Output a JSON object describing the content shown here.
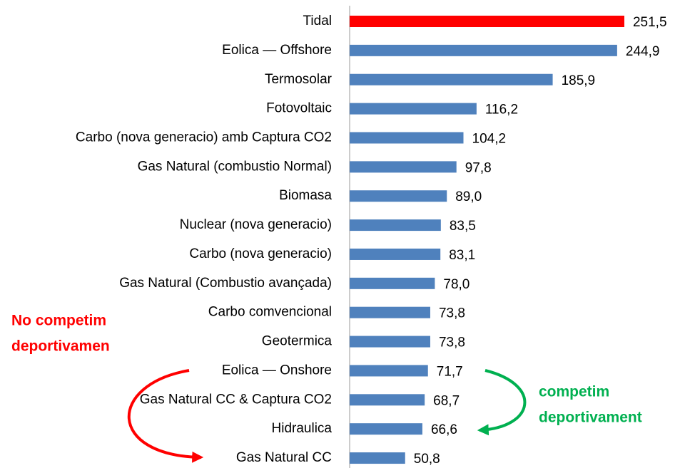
{
  "chart_data": {
    "type": "bar",
    "orientation": "horizontal",
    "categories": [
      "Tidal",
      "Eolica — Offshore",
      "Termosolar",
      "Fotovoltaic",
      "Carbo (nova generacio) amb Captura CO2",
      "Gas Natural (combustio Normal)",
      "Biomasa",
      "Nuclear (nova generacio)",
      "Carbo (nova generacio)",
      "Gas Natural (Combustio avançada)",
      "Carbo comvencional",
      "Geotermica",
      "Eolica — Onshore",
      "Gas Natural CC & Captura CO2",
      "Hidraulica",
      "Gas Natural CC"
    ],
    "values": [
      251.5,
      244.9,
      185.9,
      116.2,
      104.2,
      97.8,
      89.0,
      83.5,
      83.1,
      78.0,
      73.8,
      73.8,
      71.7,
      68.7,
      66.6,
      50.8
    ],
    "value_labels": [
      "251,5",
      "244,9",
      "185,9",
      "116,2",
      "104,2",
      "97,8",
      "89,0",
      "83,5",
      "83,1",
      "78,0",
      "73,8",
      "73,8",
      "71,7",
      "68,7",
      "66,6",
      "50,8"
    ],
    "colors": [
      "#ff0000",
      "#4f81bd",
      "#4f81bd",
      "#4f81bd",
      "#4f81bd",
      "#4f81bd",
      "#4f81bd",
      "#4f81bd",
      "#4f81bd",
      "#4f81bd",
      "#4f81bd",
      "#4f81bd",
      "#4f81bd",
      "#4f81bd",
      "#4f81bd",
      "#4f81bd"
    ],
    "xlim": [
      0,
      260
    ],
    "annotations": [
      {
        "lines": [
          "No competim",
          "deportivamen"
        ],
        "color": "#ff0000"
      },
      {
        "lines": [
          "competim",
          "deportivament"
        ],
        "color": "#00b050"
      }
    ]
  }
}
